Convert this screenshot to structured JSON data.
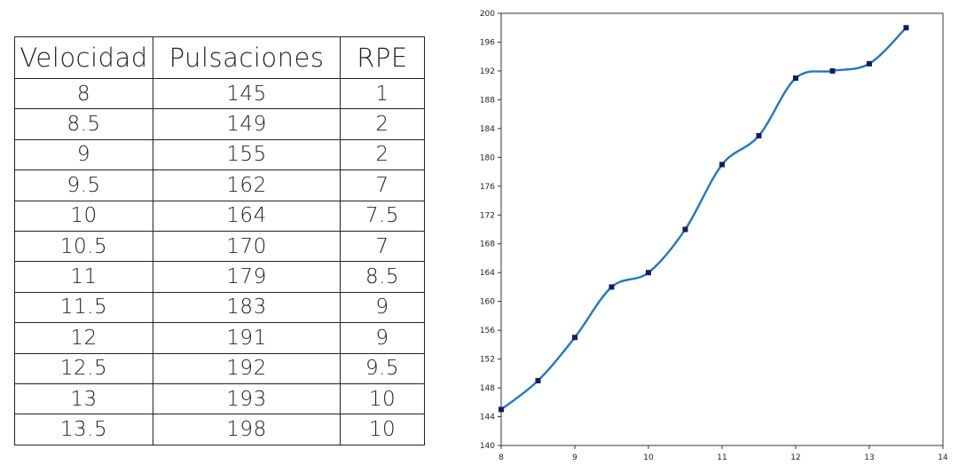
{
  "table": {
    "headers": [
      "Velocidad",
      "Pulsaciones",
      "RPE"
    ],
    "rows": [
      [
        "8",
        "145",
        "1"
      ],
      [
        "8.5",
        "149",
        "2"
      ],
      [
        "9",
        "155",
        "2"
      ],
      [
        "9.5",
        "162",
        "7"
      ],
      [
        "10",
        "164",
        "7.5"
      ],
      [
        "10.5",
        "170",
        "7"
      ],
      [
        "11",
        "179",
        "8.5"
      ],
      [
        "11.5",
        "183",
        "9"
      ],
      [
        "12",
        "191",
        "9"
      ],
      [
        "12.5",
        "192",
        "9.5"
      ],
      [
        "13",
        "193",
        "10"
      ],
      [
        "13.5",
        "198",
        "10"
      ]
    ]
  },
  "chart_data": {
    "type": "line",
    "title": "",
    "xlabel": "",
    "ylabel": "",
    "x": [
      8,
      8.5,
      9,
      9.5,
      10,
      10.5,
      11,
      11.5,
      12,
      12.5,
      13,
      13.5
    ],
    "series": [
      {
        "values": [
          145,
          149,
          155,
          162,
          164,
          170,
          179,
          183,
          191,
          192,
          193,
          198
        ]
      }
    ],
    "xlim": [
      8,
      14
    ],
    "ylim": [
      140,
      200
    ],
    "xticks": [
      8,
      9,
      10,
      11,
      12,
      13,
      14
    ],
    "yticks": [
      140,
      144,
      148,
      152,
      156,
      160,
      164,
      168,
      172,
      176,
      180,
      184,
      188,
      192,
      196,
      200
    ],
    "line_color": "#1f77c4",
    "marker_color": "#1a1a5e",
    "smooth": true,
    "grid": false,
    "legend": "none"
  }
}
